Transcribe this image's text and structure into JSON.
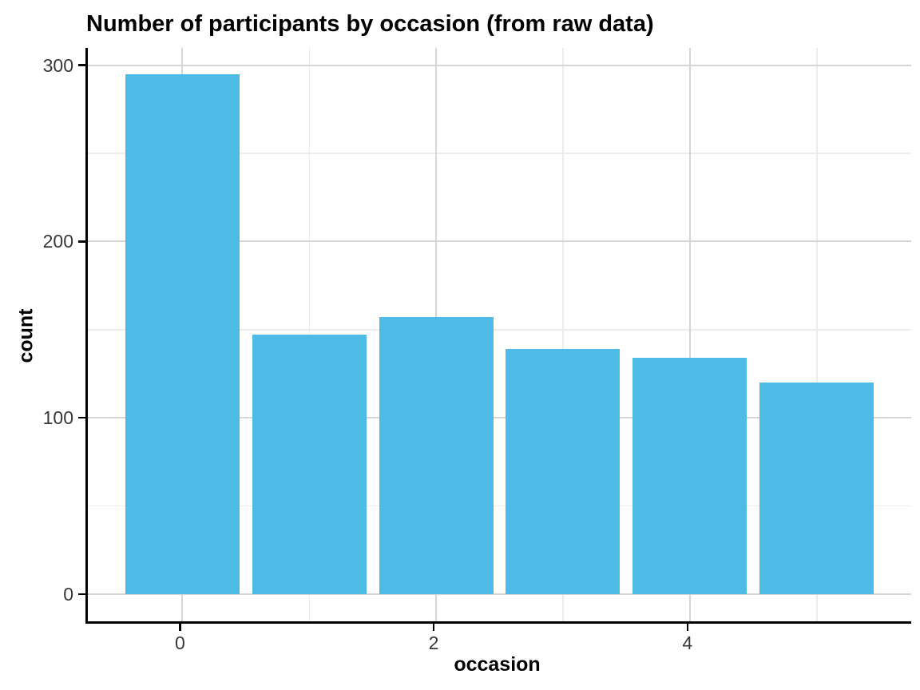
{
  "chart_data": {
    "type": "bar",
    "title": "Number of participants by occasion (from raw data)",
    "xlabel": "occasion",
    "ylabel": "count",
    "categories": [
      0,
      1,
      2,
      3,
      4,
      5
    ],
    "values": [
      295,
      147,
      157,
      139,
      134,
      120
    ],
    "bar_color": "#4DBBE6",
    "bar_width": 0.9,
    "x_major_ticks": [
      0,
      2,
      4
    ],
    "x_minor_ticks": [
      1,
      3,
      5
    ],
    "y_major_ticks": [
      0,
      100,
      200,
      300
    ],
    "y_minor_ticks": [
      50,
      150,
      250
    ],
    "xlim": [
      -0.745,
      5.745
    ],
    "ylim": [
      -15.5,
      309.75
    ],
    "grid": true,
    "legend": "none",
    "major_grid_color": "#d6d6d6",
    "minor_grid_color": "#ececec",
    "axis_line_color": "#000000",
    "tick_label_color": "#383838",
    "background_color": "#ffffff"
  }
}
